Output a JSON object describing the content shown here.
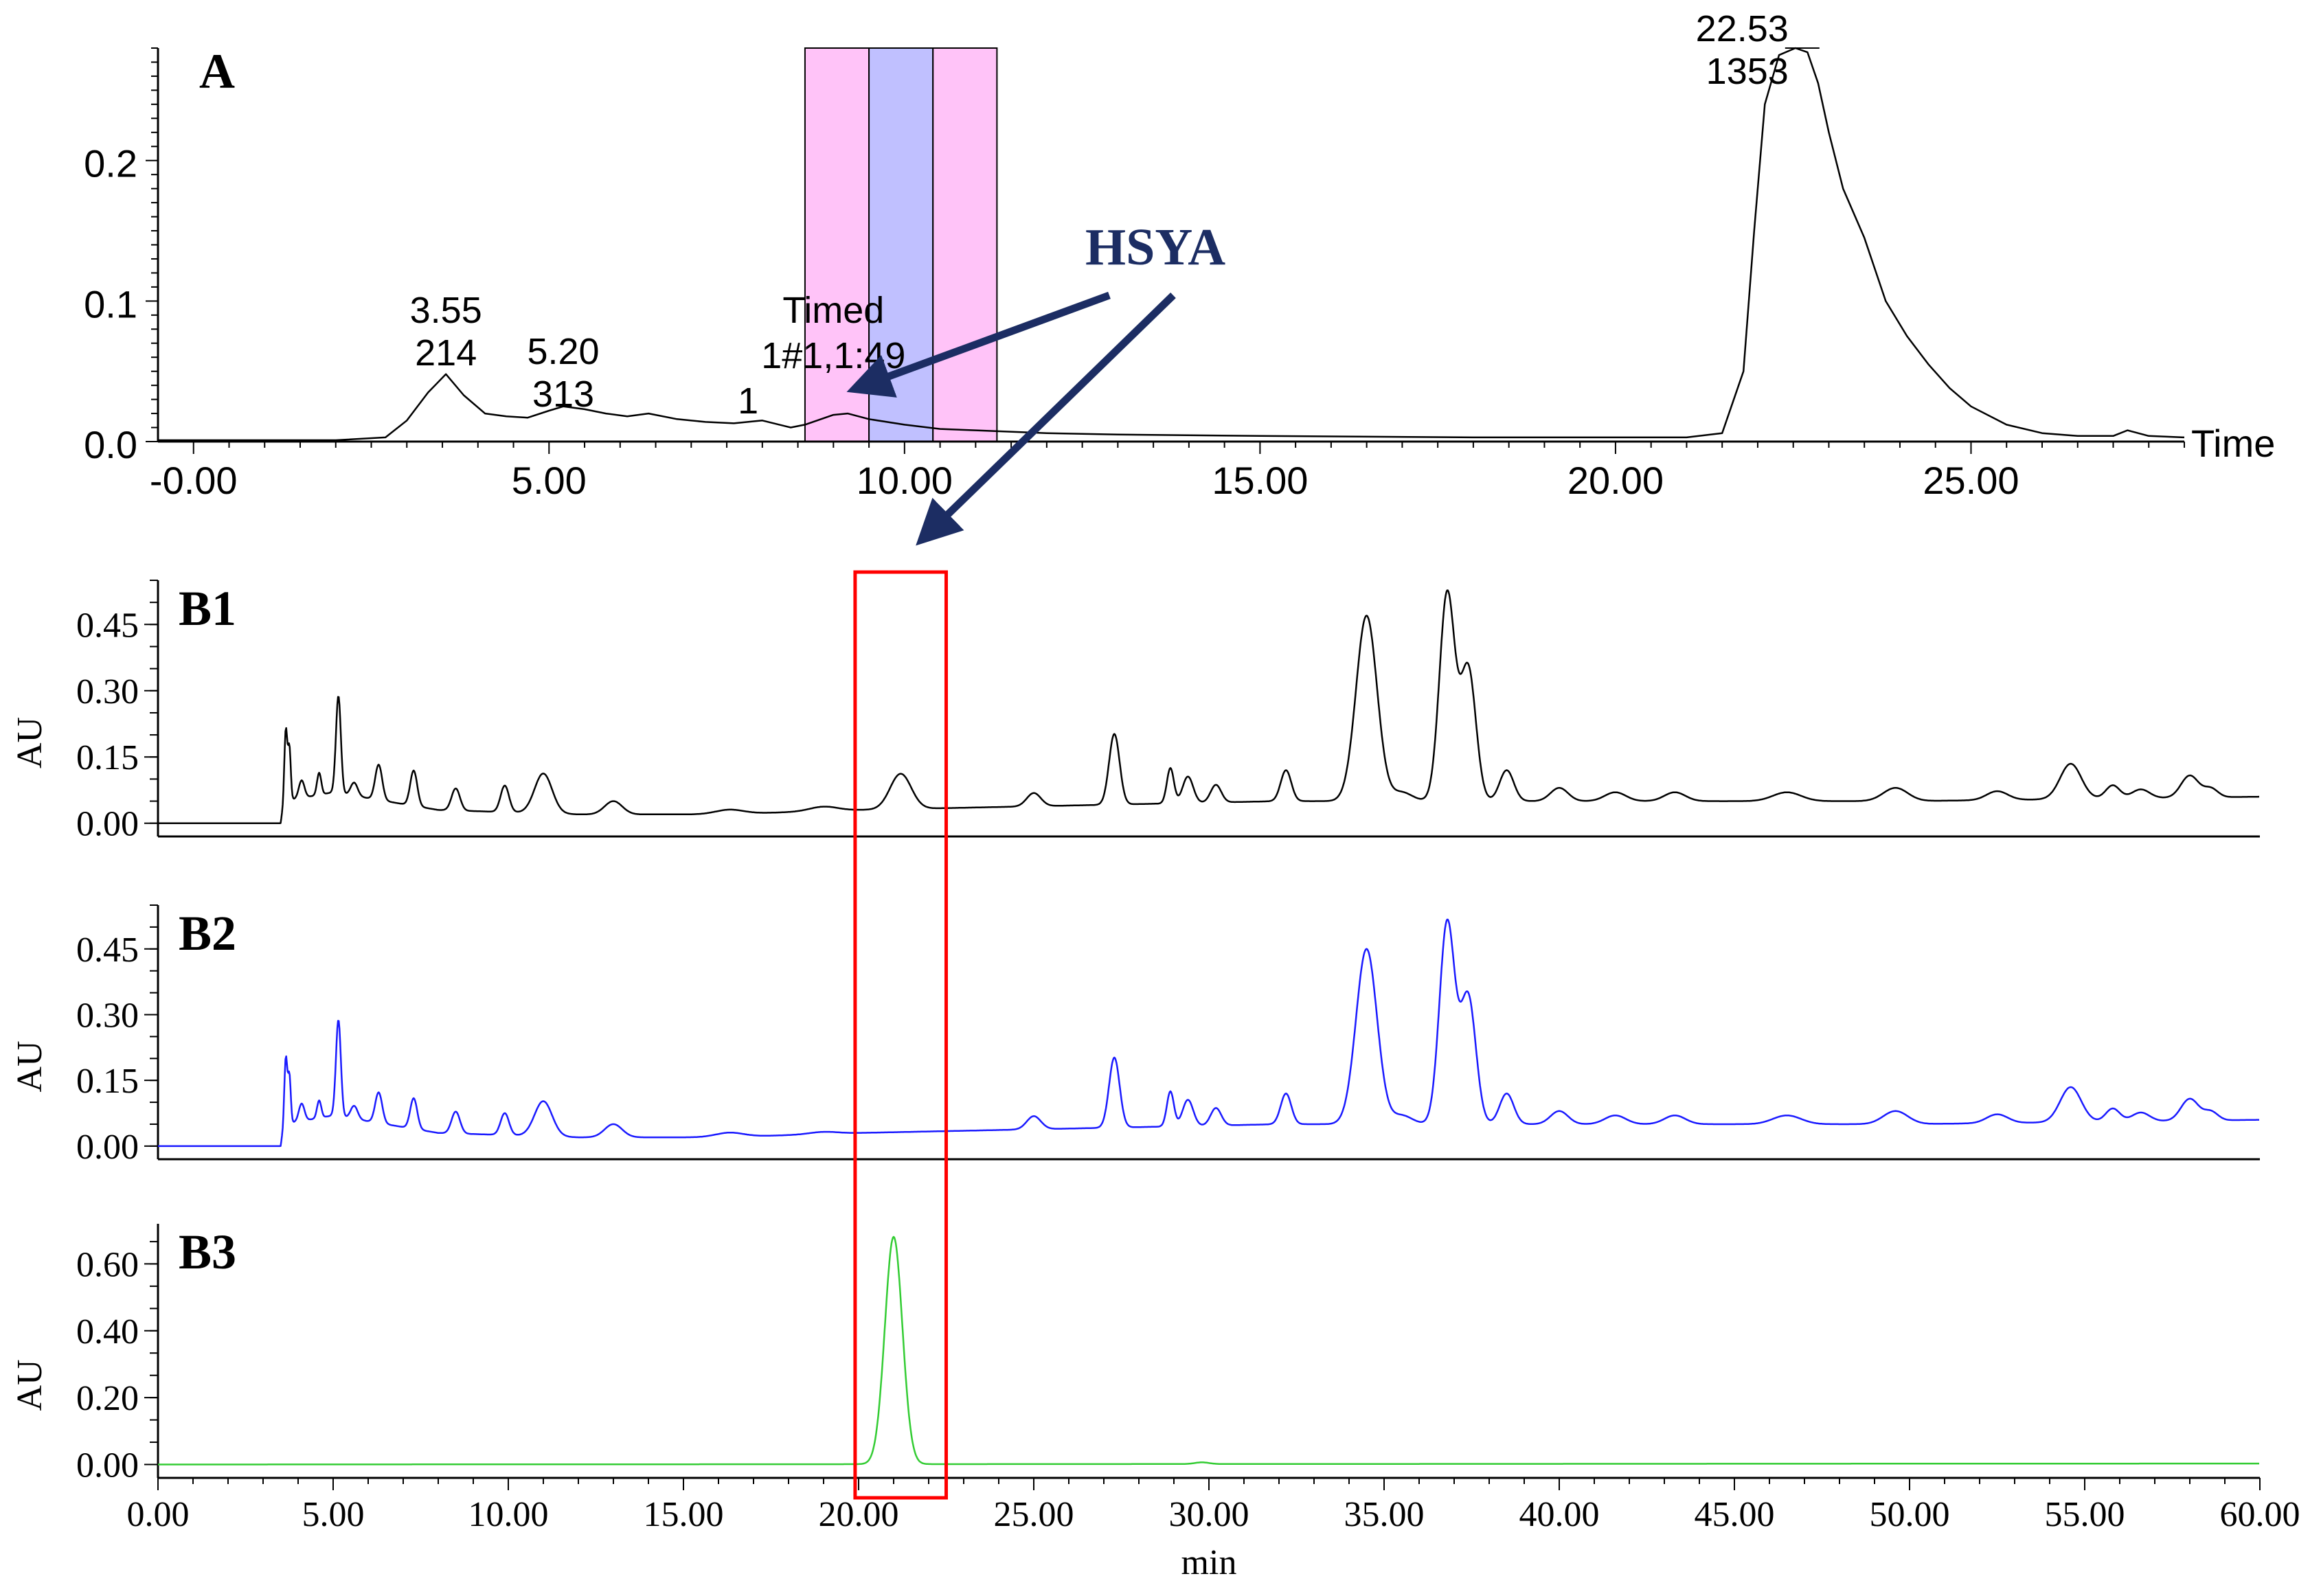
{
  "chart_data": [
    {
      "panel_label": "A",
      "type": "line",
      "xlabel": "Time",
      "ylabel": "",
      "xlim": [
        -0.5,
        28
      ],
      "ylim": [
        0,
        0.28
      ],
      "x_tick_labels": [
        "-0.00",
        "5.00",
        "10.00",
        "15.00",
        "20.00",
        "25.00"
      ],
      "x_ticks": [
        0,
        5,
        10,
        15,
        20,
        25
      ],
      "y_tick_labels": [
        "0.0",
        "0.1",
        "0.2"
      ],
      "y_ticks": [
        0,
        0.1,
        0.2
      ],
      "line_color": "#000000",
      "series": [
        {
          "x": [
            -0.5,
            1.0,
            2.0,
            2.7,
            3.0,
            3.3,
            3.55,
            3.8,
            4.1,
            4.4,
            4.7,
            5.0,
            5.2,
            5.5,
            5.8,
            6.1,
            6.4,
            6.8,
            7.2,
            7.6,
            8.0,
            8.4,
            8.6,
            9.0,
            9.2,
            9.5,
            10.0,
            10.5,
            11.0,
            12.0,
            13.0,
            15.0,
            18.0,
            20.0,
            21.0,
            21.5,
            21.8,
            21.95,
            22.1,
            22.3,
            22.53,
            22.7,
            22.85,
            23.0,
            23.2,
            23.5,
            23.8,
            24.1,
            24.4,
            24.7,
            25.0,
            25.5,
            26.0,
            26.5,
            27.0,
            27.2,
            27.5,
            28.0
          ],
          "y": [
            0.001,
            0.001,
            0.001,
            0.003,
            0.015,
            0.035,
            0.048,
            0.033,
            0.02,
            0.018,
            0.017,
            0.022,
            0.025,
            0.023,
            0.02,
            0.018,
            0.02,
            0.016,
            0.014,
            0.013,
            0.015,
            0.01,
            0.012,
            0.019,
            0.02,
            0.016,
            0.012,
            0.009,
            0.008,
            0.006,
            0.005,
            0.004,
            0.003,
            0.003,
            0.003,
            0.006,
            0.05,
            0.15,
            0.24,
            0.275,
            0.28,
            0.277,
            0.255,
            0.22,
            0.18,
            0.145,
            0.1,
            0.075,
            0.055,
            0.038,
            0.025,
            0.012,
            0.006,
            0.004,
            0.004,
            0.008,
            0.004,
            0.003
          ]
        }
      ],
      "peak_labels": [
        {
          "x": 3.55,
          "y": 0.048,
          "lines": [
            "3.55",
            "214"
          ]
        },
        {
          "x": 5.2,
          "y": 0.025,
          "lines": [
            "5.20",
            "313"
          ]
        },
        {
          "x": 22.53,
          "y": 0.28,
          "lines": [
            "22.53",
            "1353"
          ]
        }
      ],
      "timed_label": [
        "Timed",
        "1#1,1:49",
        "1"
      ],
      "fraction_bands": [
        {
          "from": 8.6,
          "to": 9.5,
          "color": "#ffc3f8"
        },
        {
          "from": 9.5,
          "to": 10.4,
          "color": "#c0c0ff"
        },
        {
          "from": 10.4,
          "to": 11.3,
          "color": "#ffc3f8"
        }
      ]
    },
    {
      "panel_label": "B1",
      "type": "line",
      "xlabel": "",
      "ylabel": "AU",
      "xlim": [
        0,
        60
      ],
      "ylim": [
        -0.03,
        0.55
      ],
      "y_tick_labels": [
        "0.00",
        "0.15",
        "0.30",
        "0.45"
      ],
      "y_ticks": [
        0,
        0.15,
        0.3,
        0.45
      ],
      "line_color": "#000000",
      "series": [
        {
          "baseline": [
            [
              0,
              0.0
            ],
            [
              3.5,
              0.0
            ],
            [
              3.6,
              0.05
            ],
            [
              5.0,
              0.07
            ],
            [
              8.0,
              0.03
            ],
            [
              12.0,
              0.02
            ],
            [
              16.0,
              0.02
            ],
            [
              20.0,
              0.03
            ],
            [
              26.0,
              0.04
            ],
            [
              32.0,
              0.05
            ],
            [
              40.0,
              0.05
            ],
            [
              50.0,
              0.05
            ],
            [
              60.0,
              0.06
            ]
          ],
          "peaks": [
            [
              3.65,
              0.16,
              0.04
            ],
            [
              3.75,
              0.12,
              0.04
            ],
            [
              4.1,
              0.04,
              0.08
            ],
            [
              4.6,
              0.05,
              0.06
            ],
            [
              5.15,
              0.22,
              0.07
            ],
            [
              5.6,
              0.03,
              0.1
            ],
            [
              6.3,
              0.08,
              0.1
            ],
            [
              7.3,
              0.08,
              0.1
            ],
            [
              8.5,
              0.05,
              0.12
            ],
            [
              9.9,
              0.06,
              0.12
            ],
            [
              11.0,
              0.09,
              0.25
            ],
            [
              13.0,
              0.03,
              0.25
            ],
            [
              16.3,
              0.01,
              0.4
            ],
            [
              19.0,
              0.01,
              0.4
            ],
            [
              21.2,
              0.08,
              0.3
            ],
            [
              25.0,
              0.03,
              0.2
            ],
            [
              27.3,
              0.16,
              0.15
            ],
            [
              28.9,
              0.08,
              0.1
            ],
            [
              29.4,
              0.06,
              0.15
            ],
            [
              30.2,
              0.04,
              0.15
            ],
            [
              32.2,
              0.07,
              0.15
            ],
            [
              34.5,
              0.42,
              0.3
            ],
            [
              35.5,
              0.02,
              0.3
            ],
            [
              36.8,
              0.47,
              0.22
            ],
            [
              37.4,
              0.3,
              0.22
            ],
            [
              38.5,
              0.07,
              0.2
            ],
            [
              40.0,
              0.03,
              0.25
            ],
            [
              41.6,
              0.02,
              0.3
            ],
            [
              43.3,
              0.02,
              0.3
            ],
            [
              46.5,
              0.02,
              0.4
            ],
            [
              49.6,
              0.03,
              0.35
            ],
            [
              52.5,
              0.02,
              0.3
            ],
            [
              54.6,
              0.08,
              0.3
            ],
            [
              55.8,
              0.03,
              0.2
            ],
            [
              56.6,
              0.02,
              0.25
            ],
            [
              58.0,
              0.05,
              0.25
            ],
            [
              58.6,
              0.02,
              0.2
            ]
          ]
        }
      ]
    },
    {
      "panel_label": "B2",
      "type": "line",
      "xlabel": "",
      "ylabel": "AU",
      "xlim": [
        0,
        60
      ],
      "ylim": [
        -0.03,
        0.55
      ],
      "y_tick_labels": [
        "0.00",
        "0.15",
        "0.30",
        "0.45"
      ],
      "y_ticks": [
        0,
        0.15,
        0.3,
        0.45
      ],
      "line_color": "#1a1aff",
      "series": [
        {
          "baseline": [
            [
              0,
              0.0
            ],
            [
              3.5,
              0.0
            ],
            [
              3.6,
              0.05
            ],
            [
              5.0,
              0.07
            ],
            [
              8.0,
              0.03
            ],
            [
              12.0,
              0.02
            ],
            [
              16.0,
              0.02
            ],
            [
              20.0,
              0.03
            ],
            [
              26.0,
              0.04
            ],
            [
              32.0,
              0.05
            ],
            [
              40.0,
              0.05
            ],
            [
              50.0,
              0.05
            ],
            [
              60.0,
              0.06
            ]
          ],
          "peaks": [
            [
              3.65,
              0.15,
              0.04
            ],
            [
              3.75,
              0.11,
              0.04
            ],
            [
              4.1,
              0.04,
              0.08
            ],
            [
              4.6,
              0.04,
              0.06
            ],
            [
              5.15,
              0.22,
              0.07
            ],
            [
              5.6,
              0.03,
              0.1
            ],
            [
              6.3,
              0.07,
              0.1
            ],
            [
              7.3,
              0.07,
              0.1
            ],
            [
              8.5,
              0.05,
              0.12
            ],
            [
              9.9,
              0.05,
              0.12
            ],
            [
              11.0,
              0.08,
              0.25
            ],
            [
              13.0,
              0.03,
              0.25
            ],
            [
              16.3,
              0.01,
              0.4
            ],
            [
              19.0,
              0.005,
              0.4
            ],
            [
              25.0,
              0.03,
              0.2
            ],
            [
              27.3,
              0.16,
              0.15
            ],
            [
              28.9,
              0.08,
              0.1
            ],
            [
              29.4,
              0.06,
              0.15
            ],
            [
              30.2,
              0.04,
              0.15
            ],
            [
              32.2,
              0.07,
              0.15
            ],
            [
              34.5,
              0.4,
              0.3
            ],
            [
              35.5,
              0.02,
              0.3
            ],
            [
              36.8,
              0.46,
              0.22
            ],
            [
              37.4,
              0.29,
              0.22
            ],
            [
              38.5,
              0.07,
              0.2
            ],
            [
              40.0,
              0.03,
              0.25
            ],
            [
              41.6,
              0.02,
              0.3
            ],
            [
              43.3,
              0.02,
              0.3
            ],
            [
              46.5,
              0.02,
              0.4
            ],
            [
              49.6,
              0.03,
              0.35
            ],
            [
              52.5,
              0.02,
              0.3
            ],
            [
              54.6,
              0.08,
              0.3
            ],
            [
              55.8,
              0.03,
              0.2
            ],
            [
              56.6,
              0.02,
              0.25
            ],
            [
              58.0,
              0.05,
              0.25
            ],
            [
              58.6,
              0.02,
              0.2
            ]
          ]
        }
      ]
    },
    {
      "panel_label": "B3",
      "type": "line",
      "xlabel": "min",
      "ylabel": "AU",
      "xlim": [
        0,
        60
      ],
      "ylim": [
        -0.04,
        0.72
      ],
      "x_tick_labels": [
        "0.00",
        "5.00",
        "10.00",
        "15.00",
        "20.00",
        "25.00",
        "30.00",
        "35.00",
        "40.00",
        "45.00",
        "50.00",
        "55.00",
        "60.00"
      ],
      "x_ticks": [
        0,
        5,
        10,
        15,
        20,
        25,
        30,
        35,
        40,
        45,
        50,
        55,
        60
      ],
      "y_tick_labels": [
        "0.00",
        "0.20",
        "0.40",
        "0.60"
      ],
      "y_ticks": [
        0,
        0.2,
        0.4,
        0.6
      ],
      "line_color": "#33cc33",
      "series": [
        {
          "baseline": [
            [
              0,
              0.0
            ],
            [
              60,
              0.003
            ]
          ],
          "peaks": [
            [
              21.0,
              0.68,
              0.25
            ],
            [
              29.8,
              0.005,
              0.2
            ]
          ]
        }
      ]
    }
  ],
  "annotation": {
    "label": "HSYA",
    "label_color": "#1c2d63",
    "arrow_color": "#1c2d63",
    "highlight_color": "#ff0000",
    "highlight_range_min": [
      19.9,
      22.5
    ]
  }
}
